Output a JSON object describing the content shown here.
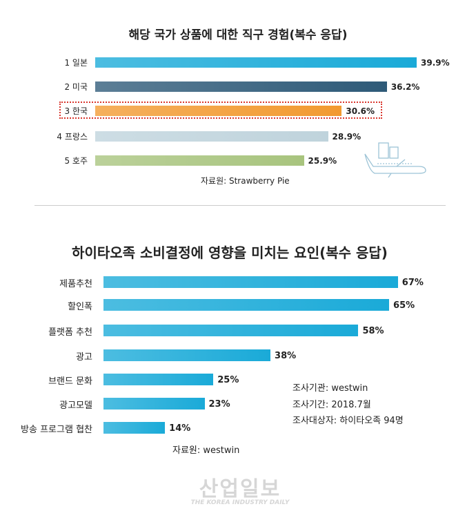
{
  "chart_data": [
    {
      "type": "bar",
      "orientation": "horizontal",
      "title": "해당 국가 상품에 대한 직구 경험(복수 응답)",
      "categories": [
        "1 일본",
        "2 미국",
        "3 한국",
        "4 프랑스",
        "5 호주"
      ],
      "values": [
        39.9,
        36.2,
        30.6,
        28.9,
        25.9
      ],
      "value_labels": [
        "39.9%",
        "36.2%",
        "30.6%",
        "28.9%",
        "25.9%"
      ],
      "colors": [
        "#1aaad8",
        "#2e5a78",
        "#f29a30",
        "#bfd3dc",
        "#a8c47e"
      ],
      "highlight": "3 한국",
      "highlight_color": "#d9342b",
      "source": "자료원: Strawberry Pie"
    },
    {
      "type": "bar",
      "orientation": "horizontal",
      "title": "하이타오족 소비결정에 영향을 미치는 요인(복수 응답)",
      "categories": [
        "제품추천",
        "할인폭",
        "플랫폼 추천",
        "광고",
        "브랜드 문화",
        "광고모델",
        "방송 프로그램 협찬"
      ],
      "values": [
        67,
        65,
        58,
        38,
        25,
        23,
        14
      ],
      "value_labels": [
        "67%",
        "65%",
        "58%",
        "38%",
        "25%",
        "23%",
        "14%"
      ],
      "color": "#1aaad8",
      "notes": [
        "조사기관: westwin",
        "조사기간: 2018.7월",
        "조사대상자: 하이타오족 94명"
      ],
      "source": "자료원: westwin"
    }
  ],
  "watermark": {
    "logo": "산업일보",
    "tagline": "THE KOREA INDUSTRY DAILY"
  },
  "icons": {
    "decoration": "cargo-plane-icon"
  }
}
